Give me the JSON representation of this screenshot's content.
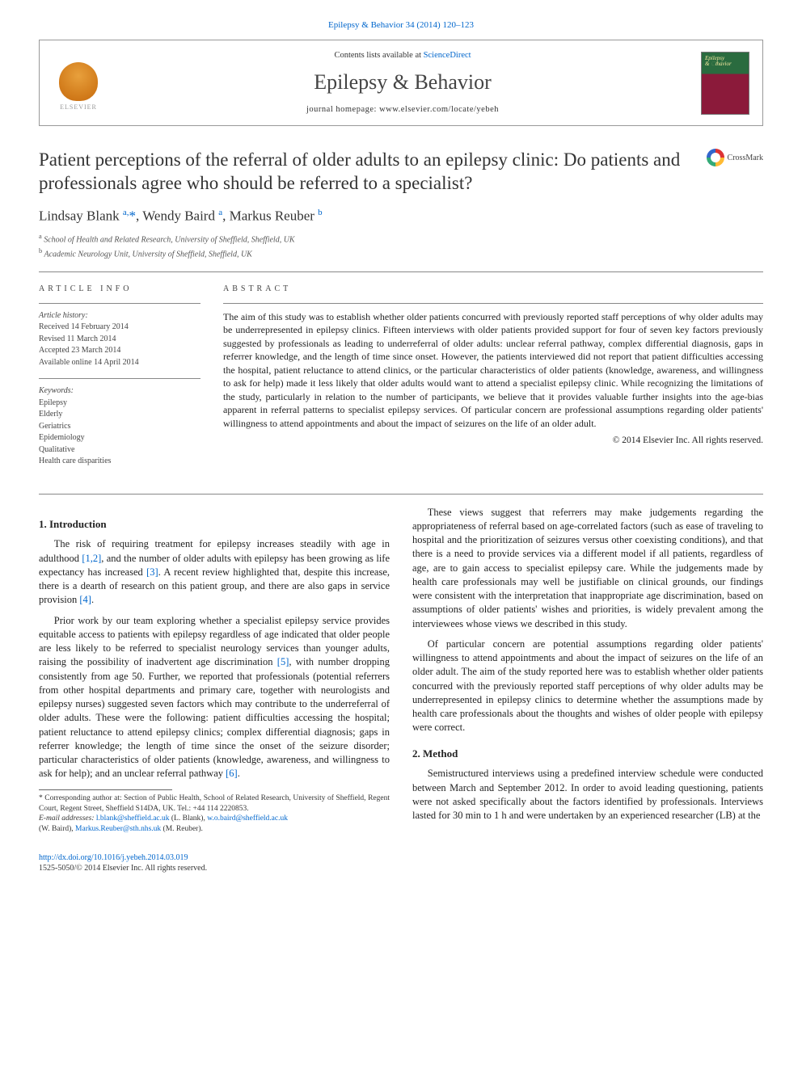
{
  "journal_ref": "Epilepsy & Behavior 34 (2014) 120–123",
  "header": {
    "contents_prefix": "Contents lists available at ",
    "contents_link": "ScienceDirect",
    "journal_title": "Epilepsy & Behavior",
    "homepage_label": "journal homepage: ",
    "homepage_url": "www.elsevier.com/locate/yebeh",
    "publisher": "ELSEVIER"
  },
  "article": {
    "title": "Patient perceptions of the referral of older adults to an epilepsy clinic: Do patients and professionals agree who should be referred to a specialist?",
    "crossmark": "CrossMark",
    "authors_html": "Lindsay Blank <sup>a,</sup><span class='ast'>*</span>, Wendy Baird <sup>a</sup>, Markus Reuber <sup>b</sup>",
    "affiliations": {
      "a": "School of Health and Related Research, University of Sheffield, Sheffield, UK",
      "b": "Academic Neurology Unit, University of Sheffield, Sheffield, UK"
    }
  },
  "info": {
    "section_label": "ARTICLE INFO",
    "history_label": "Article history:",
    "received": "Received 14 February 2014",
    "revised": "Revised 11 March 2014",
    "accepted": "Accepted 23 March 2014",
    "online": "Available online 14 April 2014",
    "keywords_label": "Keywords:",
    "keywords": [
      "Epilepsy",
      "Elderly",
      "Geriatrics",
      "Epidemiology",
      "Qualitative",
      "Health care disparities"
    ]
  },
  "abstract": {
    "section_label": "ABSTRACT",
    "text": "The aim of this study was to establish whether older patients concurred with previously reported staff perceptions of why older adults may be underrepresented in epilepsy clinics. Fifteen interviews with older patients provided support for four of seven key factors previously suggested by professionals as leading to underreferral of older adults: unclear referral pathway, complex differential diagnosis, gaps in referrer knowledge, and the length of time since onset. However, the patients interviewed did not report that patient difficulties accessing the hospital, patient reluctance to attend clinics, or the particular characteristics of older patients (knowledge, awareness, and willingness to ask for help) made it less likely that older adults would want to attend a specialist epilepsy clinic. While recognizing the limitations of the study, particularly in relation to the number of participants, we believe that it provides valuable further insights into the age-bias apparent in referral patterns to specialist epilepsy services. Of particular concern are professional assumptions regarding older patients' willingness to attend appointments and about the impact of seizures on the life of an older adult.",
    "copyright": "© 2014 Elsevier Inc. All rights reserved."
  },
  "body": {
    "s1_heading": "1. Introduction",
    "p1_a": "The risk of requiring treatment for epilepsy increases steadily with age in adulthood ",
    "p1_ref1": "[1,2]",
    "p1_b": ", and the number of older adults with epilepsy has been growing as life expectancy has increased ",
    "p1_ref2": "[3]",
    "p1_c": ". A recent review highlighted that, despite this increase, there is a dearth of research on this patient group, and there are also gaps in service provision ",
    "p1_ref3": "[4]",
    "p2_a": "Prior work by our team exploring whether a specialist epilepsy service provides equitable access to patients with epilepsy regardless of age indicated that older people are less likely to be referred to specialist neurology services than younger adults, raising the possibility of inadvertent age discrimination ",
    "p2_ref1": "[5]",
    "p2_b": ", with number dropping consistently from age 50. Further, we reported that professionals (potential referrers from other hospital departments and primary care, together with neurologists and epilepsy nurses) suggested seven factors which may contribute to the underreferral of older adults. These were the following: patient difficulties accessing the hospital; patient reluctance to attend epilepsy clinics; complex differential diagnosis; gaps in referrer knowledge; the length of time since the onset of the seizure disorder; particular characteristics of older patients (knowledge, awareness, and willingness to ask for help); and an unclear referral pathway ",
    "p2_ref2": "[6]",
    "p3": "These views suggest that referrers may make judgements regarding the appropriateness of referral based on age-correlated factors (such as ease of traveling to hospital and the prioritization of seizures versus other coexisting conditions), and that there is a need to provide services via a different model if all patients, regardless of age, are to gain access to specialist epilepsy care. While the judgements made by health care professionals may well be justifiable on clinical grounds, our findings were consistent with the interpretation that inappropriate age discrimination, based on assumptions of older patients' wishes and priorities, is widely prevalent among the interviewees whose views we described in this study.",
    "p4": "Of particular concern are potential assumptions regarding older patients' willingness to attend appointments and about the impact of seizures on the life of an older adult. The aim of the study reported here was to establish whether older patients concurred with the previously reported staff perceptions of why older adults may be underrepresented in epilepsy clinics to determine whether the assumptions made by health care professionals about the thoughts and wishes of older people with epilepsy were correct.",
    "s2_heading": "2. Method",
    "p5": "Semistructured interviews using a predefined interview schedule were conducted between March and September 2012. In order to avoid leading questioning, patients were not asked specifically about the factors identified by professionals. Interviews lasted for 30 min to 1 h and were undertaken by an experienced researcher (LB) at the"
  },
  "footnotes": {
    "corr": "* Corresponding author at: Section of Public Health, School of Related Research, University of Sheffield, Regent Court, Regent Street, Sheffield S14DA, UK. Tel.: +44 114 2220853.",
    "email_label": "E-mail addresses: ",
    "email1": "l.blank@sheffield.ac.uk",
    "email1_who": " (L. Blank), ",
    "email2": "w.o.baird@sheffield.ac.uk",
    "email2_who": " (W. Baird), ",
    "email3": "Markus.Reuber@sth.nhs.uk",
    "email3_who": " (M. Reuber)."
  },
  "footer": {
    "doi": "http://dx.doi.org/10.1016/j.yebeh.2014.03.019",
    "issn_copyright": "1525-5050/© 2014 Elsevier Inc. All rights reserved."
  },
  "colors": {
    "link": "#0066cc",
    "text": "#222222",
    "rule": "#888888"
  }
}
